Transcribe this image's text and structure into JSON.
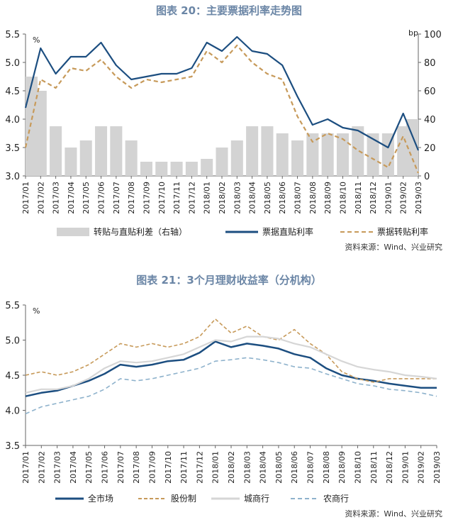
{
  "chart_data": [
    {
      "type": "line",
      "title": "图表 20：主要票据利率走势图",
      "ylabel": "%",
      "y2label": "bp",
      "ylim": [
        3.0,
        5.5
      ],
      "y2lim": [
        0,
        100
      ],
      "yticks": [
        "3.0",
        "3.5",
        "4.0",
        "4.5",
        "5.0",
        "5.5"
      ],
      "y2ticks": [
        "0",
        "20",
        "40",
        "60",
        "80",
        "100"
      ],
      "categories": [
        "2017/01",
        "2017/02",
        "2017/03",
        "2017/04",
        "2017/05",
        "2017/06",
        "2017/07",
        "2017/08",
        "2017/09",
        "2017/10",
        "2017/11",
        "2017/12",
        "2018/01",
        "2018/02",
        "2018/03",
        "2018/04",
        "2018/05",
        "2018/06",
        "2018/07",
        "2018/08",
        "2018/09",
        "2018/10",
        "2018/11",
        "2018/12",
        "2019/01",
        "2019/02",
        "2019/03"
      ],
      "series": [
        {
          "name": "转贴与直贴利差（右轴）",
          "kind": "bar",
          "axis": "right",
          "color": "#d3d3d3",
          "values": [
            70,
            60,
            35,
            20,
            25,
            35,
            35,
            25,
            10,
            10,
            10,
            10,
            12,
            20,
            25,
            35,
            35,
            30,
            25,
            30,
            30,
            30,
            35,
            30,
            30,
            35,
            40
          ]
        },
        {
          "name": "票据直贴利率",
          "kind": "line",
          "color": "#1c4e80",
          "values": [
            4.2,
            5.25,
            4.8,
            5.1,
            5.1,
            5.35,
            4.95,
            4.7,
            4.75,
            4.8,
            4.8,
            4.9,
            5.35,
            5.2,
            5.45,
            5.2,
            5.15,
            4.95,
            4.4,
            3.9,
            4.0,
            3.85,
            3.8,
            3.65,
            3.5,
            4.1,
            3.45
          ]
        },
        {
          "name": "票据转贴利率",
          "kind": "line",
          "color": "#c79a5a",
          "dash": true,
          "values": [
            3.5,
            4.7,
            4.55,
            4.9,
            4.85,
            5.05,
            4.75,
            4.55,
            4.7,
            4.65,
            4.7,
            4.75,
            5.2,
            5.0,
            5.3,
            5.0,
            4.8,
            4.7,
            4.05,
            3.6,
            3.75,
            3.65,
            3.45,
            3.3,
            3.15,
            3.7,
            3.05
          ]
        }
      ],
      "source": "资料来源：Wind、兴业研究"
    },
    {
      "type": "line",
      "title": "图表 21：3个月理财收益率（分机构）",
      "ylabel": "%",
      "ylim": [
        3.5,
        5.5
      ],
      "yticks": [
        "3.5",
        "4.0",
        "4.5",
        "5.0",
        "5.5"
      ],
      "categories": [
        "2017/01",
        "2017/02",
        "2017/03",
        "2017/04",
        "2017/05",
        "2017/06",
        "2017/07",
        "2017/08",
        "2017/09",
        "2017/10",
        "2017/11",
        "2017/12",
        "2018/01",
        "2018/02",
        "2018/03",
        "2018/04",
        "2018/05",
        "2018/06",
        "2018/07",
        "2018/08",
        "2018/09",
        "2018/10",
        "2018/11",
        "2018/12",
        "2019/01",
        "2019/02",
        "2019/03"
      ],
      "series": [
        {
          "name": "全市场",
          "color": "#1c4e80",
          "width": 2.5,
          "values": [
            4.2,
            4.25,
            4.28,
            4.35,
            4.42,
            4.52,
            4.65,
            4.62,
            4.65,
            4.7,
            4.72,
            4.82,
            4.98,
            4.9,
            4.95,
            4.92,
            4.88,
            4.8,
            4.75,
            4.6,
            4.5,
            4.45,
            4.42,
            4.38,
            4.35,
            4.32,
            4.32
          ]
        },
        {
          "name": "股份制",
          "color": "#c79a5a",
          "dash": "5,3",
          "width": 1.6,
          "values": [
            4.5,
            4.55,
            4.5,
            4.55,
            4.65,
            4.8,
            4.95,
            4.9,
            4.95,
            4.9,
            4.95,
            5.05,
            5.3,
            5.1,
            5.2,
            5.05,
            5.0,
            5.15,
            4.95,
            4.8,
            4.55,
            4.45,
            4.4,
            4.45,
            4.45,
            4.45,
            4.45
          ]
        },
        {
          "name": "城商行",
          "color": "#d6d6d6",
          "width": 2.2,
          "values": [
            4.25,
            4.3,
            4.3,
            4.35,
            4.45,
            4.6,
            4.7,
            4.68,
            4.7,
            4.75,
            4.8,
            4.9,
            5.0,
            4.98,
            5.05,
            5.05,
            5.02,
            4.95,
            4.9,
            4.8,
            4.7,
            4.62,
            4.58,
            4.55,
            4.5,
            4.48,
            4.45
          ]
        },
        {
          "name": "农商行",
          "color": "#8eb2cc",
          "dash": "6,4",
          "width": 1.6,
          "values": [
            3.95,
            4.05,
            4.1,
            4.15,
            4.2,
            4.3,
            4.45,
            4.42,
            4.45,
            4.5,
            4.55,
            4.6,
            4.7,
            4.72,
            4.75,
            4.72,
            4.68,
            4.62,
            4.6,
            4.52,
            4.45,
            4.38,
            4.35,
            4.3,
            4.28,
            4.25,
            4.2
          ]
        }
      ],
      "source": "资料来源：Wind、兴业研究"
    }
  ]
}
